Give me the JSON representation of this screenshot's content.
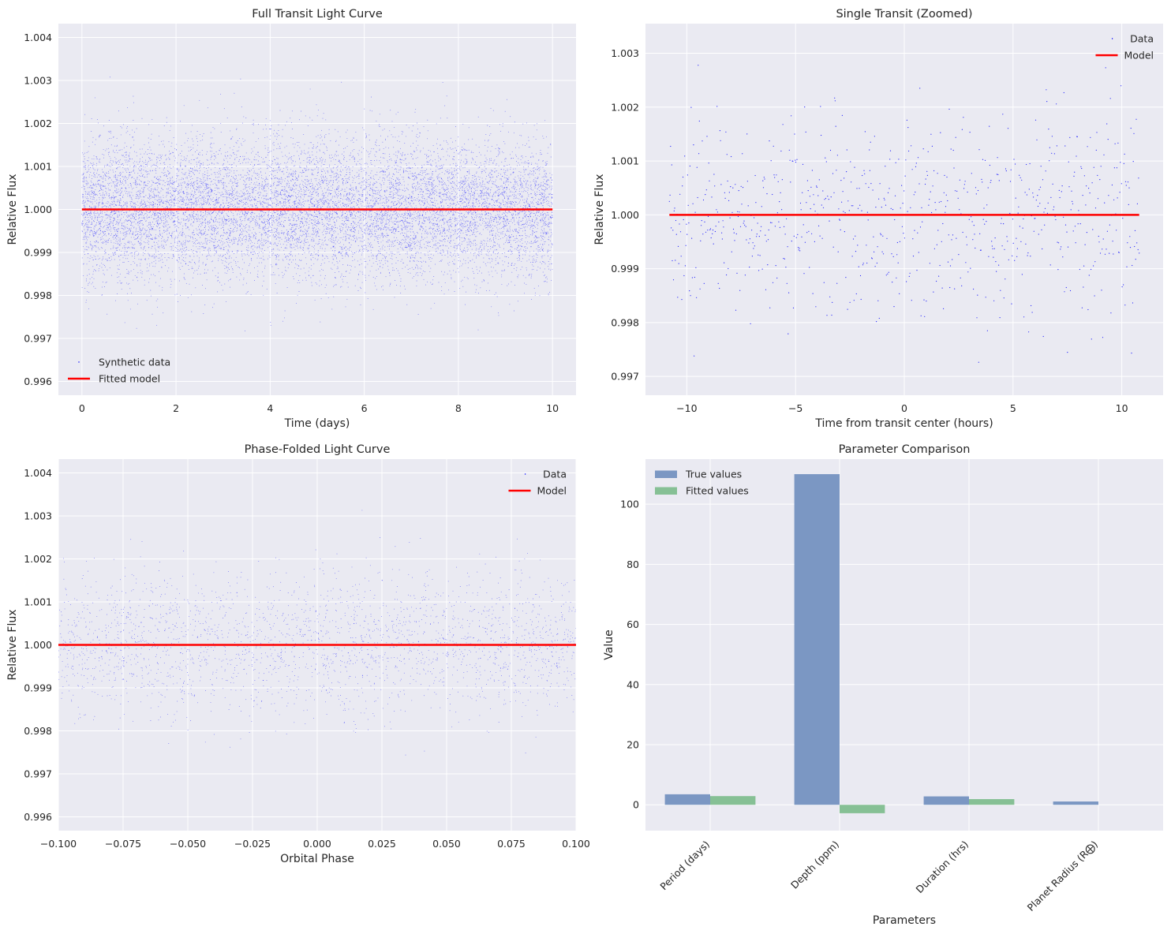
{
  "colors": {
    "axes_bg": "#eaeaf2",
    "grid": "#ffffff",
    "data_points": "#0000ff",
    "model_line": "#ff0000",
    "bar_true": "#7b97c3",
    "bar_fitted": "#86c095"
  },
  "chart_data": [
    {
      "id": "full",
      "type": "scatter",
      "title": "Full Transit Light Curve",
      "xlabel": "Time (days)",
      "ylabel": "Relative Flux",
      "xlim": [
        -0.5,
        10.5
      ],
      "ylim": [
        0.99568,
        1.00432
      ],
      "xticks": [
        0,
        2,
        4,
        6,
        8,
        10
      ],
      "xtick_labels": [
        "0",
        "2",
        "4",
        "6",
        "8",
        "10"
      ],
      "yticks": [
        0.996,
        0.997,
        0.998,
        0.999,
        1.0,
        1.001,
        1.002,
        1.003,
        1.004
      ],
      "ytick_labels": [
        "0.996",
        "0.997",
        "0.998",
        "0.999",
        "1.000",
        "1.001",
        "1.002",
        "1.003",
        "1.004"
      ],
      "grid": true,
      "legend_position": "lower-left",
      "scatter": {
        "name": "Synthetic data",
        "x_range": [
          0,
          10
        ],
        "flux_mean": 1.0,
        "flux_std": 0.0008,
        "point_count": 12000
      },
      "model": {
        "name": "Fitted model",
        "x": [
          0,
          10
        ],
        "y": [
          1.0,
          1.0
        ]
      }
    },
    {
      "id": "zoom",
      "type": "scatter",
      "title": "Single Transit (Zoomed)",
      "xlabel": "Time from transit center (hours)",
      "ylabel": "Relative Flux",
      "xlim": [
        -11.9,
        11.9
      ],
      "ylim": [
        0.99665,
        1.00355
      ],
      "xticks": [
        -10,
        -5,
        0,
        5,
        10
      ],
      "xtick_labels": [
        "−10",
        "−5",
        "0",
        "5",
        "10"
      ],
      "yticks": [
        0.997,
        0.998,
        0.999,
        1.0,
        1.001,
        1.002,
        1.003
      ],
      "ytick_labels": [
        "0.997",
        "0.998",
        "0.999",
        "1.000",
        "1.001",
        "1.002",
        "1.003"
      ],
      "grid": true,
      "legend_position": "upper-right",
      "scatter": {
        "name": "Data",
        "x_range": [
          -10.8,
          10.8
        ],
        "flux_mean": 1.0,
        "flux_std": 0.0009,
        "point_count": 800
      },
      "model": {
        "name": "Model",
        "x": [
          -10.8,
          10.8
        ],
        "y": [
          1.0,
          1.0
        ]
      }
    },
    {
      "id": "phase",
      "type": "scatter",
      "title": "Phase-Folded Light Curve",
      "xlabel": "Orbital Phase",
      "ylabel": "Relative Flux",
      "xlim": [
        -0.1,
        0.1
      ],
      "ylim": [
        0.99568,
        1.00432
      ],
      "xticks": [
        -0.1,
        -0.075,
        -0.05,
        -0.025,
        0.0,
        0.025,
        0.05,
        0.075,
        0.1
      ],
      "xtick_labels": [
        "−0.100",
        "−0.075",
        "−0.050",
        "−0.025",
        "0.000",
        "0.025",
        "0.050",
        "0.075",
        "0.100"
      ],
      "yticks": [
        0.996,
        0.997,
        0.998,
        0.999,
        1.0,
        1.001,
        1.002,
        1.003,
        1.004
      ],
      "ytick_labels": [
        "0.996",
        "0.997",
        "0.998",
        "0.999",
        "1.000",
        "1.001",
        "1.002",
        "1.003",
        "1.004"
      ],
      "grid": true,
      "legend_position": "upper-right",
      "scatter": {
        "name": "Data",
        "x_range": [
          -0.1,
          0.1
        ],
        "flux_mean": 1.0,
        "flux_std": 0.0008,
        "point_count": 2600
      },
      "model": {
        "name": "Model",
        "x": [
          -0.1,
          0.1
        ],
        "y": [
          1.0,
          1.0
        ]
      }
    },
    {
      "id": "params",
      "type": "bar",
      "title": "Parameter Comparison",
      "xlabel": "Parameters",
      "ylabel": "Value",
      "categories": [
        "Period (days)",
        "Depth (ppm)",
        "Duration (hrs)",
        "Planet Radius (R⨁)"
      ],
      "series": [
        {
          "name": "True values",
          "values": [
            3.5,
            110.0,
            2.8,
            1.1
          ]
        },
        {
          "name": "Fitted values",
          "values": [
            2.9,
            -2.8,
            1.9,
            0.0
          ]
        }
      ],
      "ylim": [
        -8.6,
        115.0
      ],
      "yticks": [
        0,
        20,
        40,
        60,
        80,
        100
      ],
      "ytick_labels": [
        "0",
        "20",
        "40",
        "60",
        "80",
        "100"
      ],
      "grid": true,
      "legend_position": "upper-left"
    }
  ]
}
